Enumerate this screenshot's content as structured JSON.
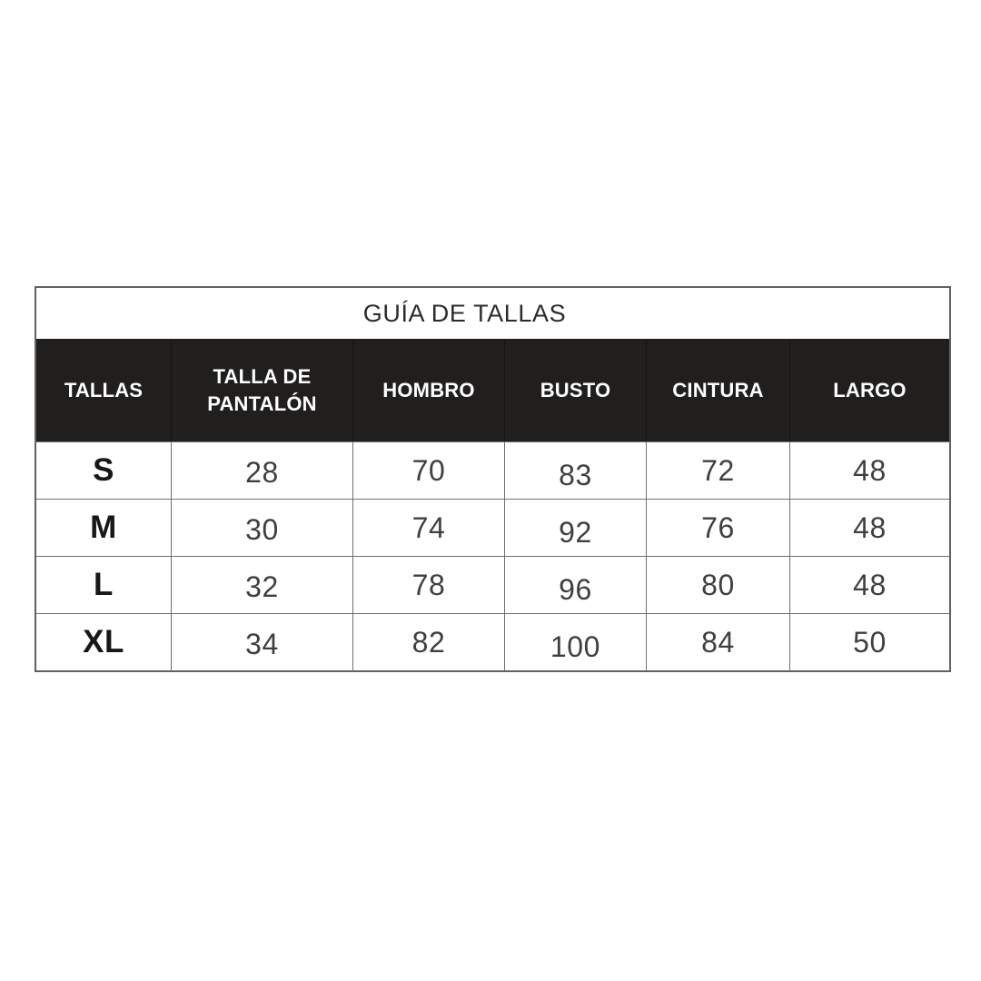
{
  "chart_data": {
    "type": "table",
    "title": "GUÍA DE TALLAS",
    "columns": [
      "TALLAS",
      "TALLA DE PANTALÓN",
      "HOMBRO",
      "BUSTO",
      "CINTURA",
      "LARGO"
    ],
    "rows": [
      [
        "S",
        "28",
        "70",
        "83",
        "72",
        "48"
      ],
      [
        "M",
        "30",
        "74",
        "92",
        "76",
        "48"
      ],
      [
        "L",
        "32",
        "78",
        "96",
        "80",
        "48"
      ],
      [
        "XL",
        "34",
        "82",
        "100",
        "84",
        "50"
      ]
    ],
    "units_note": "",
    "layout": {
      "legend": "none",
      "grid": "on"
    }
  },
  "colors": {
    "page_bg": "#ffffff",
    "header_bg": "#211e1e",
    "header_text": "#ffffff",
    "outer_border": "#616161",
    "grid_line": "#6f6f6f",
    "title_text": "#2b2b2b",
    "size_text": "#171717",
    "value_text": "#3f3f3f"
  }
}
